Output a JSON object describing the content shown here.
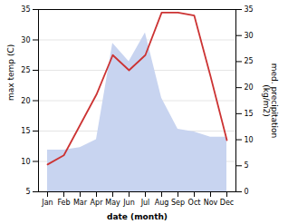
{
  "chart_data": {
    "type": "line",
    "xlabel": "date (month)",
    "ylabel": "max temp (C)",
    "y2label": "med. precipitation\n(kg/m2)",
    "categories": [
      "Jan",
      "Feb",
      "Mar",
      "Apr",
      "May",
      "Jun",
      "Jul",
      "Aug",
      "Sep",
      "Oct",
      "Nov",
      "Dec"
    ],
    "series": [
      {
        "type": "area",
        "axis": "y2",
        "color": "#c8d4f0",
        "values": [
          8.0,
          8.0,
          8.5,
          10.0,
          28.5,
          25.0,
          30.5,
          18.0,
          12.0,
          11.5,
          10.5,
          10.5
        ]
      },
      {
        "type": "line",
        "color": "#cc3333",
        "values": [
          9.5,
          11.0,
          16.0,
          21.0,
          27.5,
          25.0,
          27.5,
          34.5,
          34.5,
          34.0,
          24.0,
          13.5
        ]
      }
    ],
    "ylim": [
      5,
      35
    ],
    "yticks": [
      5,
      10,
      15,
      20,
      25,
      30,
      35
    ],
    "y2lim": [
      0,
      35
    ],
    "y2ticks": [
      0,
      5,
      10,
      15,
      20,
      25,
      30,
      35
    ],
    "grid": true
  }
}
